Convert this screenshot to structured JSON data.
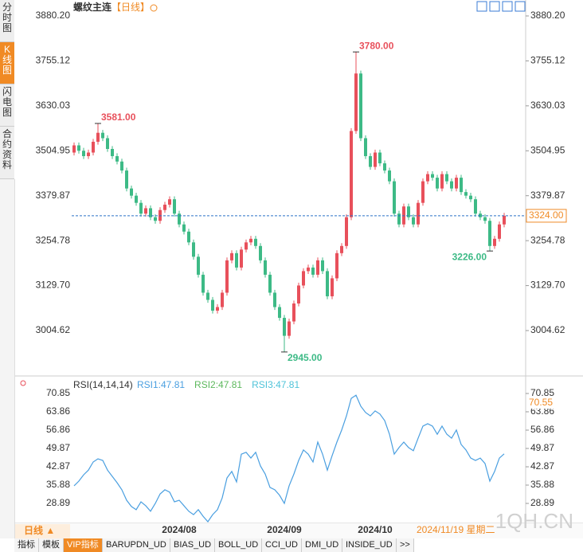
{
  "ui": {
    "sidebar_tabs": [
      "分时图",
      "K线图",
      "闪电图",
      "合约资料"
    ],
    "active_sidebar_tab": 1,
    "symbol": "螺纹主连",
    "period": "【日线】",
    "period_button": "日线 ▲",
    "date_status": "2024/11/19 星期二",
    "bottom_tabs": [
      "指标",
      "模板",
      "VIP指标",
      "BARUPDN_UD",
      "BIAS_UD",
      "BOLL_UD",
      "CCI_UD",
      "DMI_UD",
      "INSIDE_UD",
      ">>"
    ],
    "active_bottom_tab": 2,
    "watermark": "1QH.CN"
  },
  "chart_data": [
    {
      "type": "candlestick",
      "up_color": "#e8505b",
      "down_color": "#3dba86",
      "open": [
        3500,
        3520,
        3505,
        3490,
        3500,
        3530,
        3555,
        3540,
        3510,
        3490,
        3475,
        3450,
        3400,
        3380,
        3360,
        3330,
        3345,
        3320,
        3310,
        3340,
        3355,
        3370,
        3330,
        3300,
        3280,
        3250,
        3210,
        3160,
        3110,
        3090,
        3060,
        3070,
        3110,
        3200,
        3220,
        3180,
        3230,
        3250,
        3260,
        3240,
        3200,
        3160,
        3110,
        3070,
        3040,
        2990,
        3030,
        3080,
        3130,
        3170,
        3180,
        3160,
        3200,
        3170,
        3100,
        3150,
        3220,
        3240,
        3320,
        3560,
        3720,
        3540,
        3490,
        3460,
        3500,
        3470,
        3450,
        3420,
        3330,
        3300,
        3350,
        3320,
        3300,
        3360,
        3420,
        3440,
        3430,
        3400,
        3440,
        3420,
        3400,
        3430,
        3390,
        3380,
        3370,
        3330,
        3320,
        3310,
        3240,
        3260,
        3300
      ],
      "high": [
        3528,
        3528,
        3513,
        3508,
        3538,
        3581,
        3563,
        3548,
        3518,
        3498,
        3483,
        3458,
        3408,
        3388,
        3368,
        3353,
        3353,
        3328,
        3348,
        3363,
        3378,
        3378,
        3338,
        3308,
        3288,
        3258,
        3218,
        3168,
        3118,
        3098,
        3078,
        3118,
        3208,
        3228,
        3228,
        3238,
        3258,
        3268,
        3268,
        3248,
        3208,
        3168,
        3118,
        3078,
        3048,
        3038,
        3088,
        3138,
        3178,
        3188,
        3188,
        3208,
        3208,
        3178,
        3158,
        3228,
        3248,
        3328,
        3568,
        3780,
        3728,
        3548,
        3498,
        3508,
        3508,
        3478,
        3458,
        3428,
        3338,
        3358,
        3358,
        3328,
        3368,
        3428,
        3448,
        3448,
        3438,
        3448,
        3448,
        3428,
        3438,
        3438,
        3398,
        3388,
        3378,
        3338,
        3328,
        3318,
        3268,
        3308,
        3332
      ],
      "low": [
        3492,
        3497,
        3482,
        3482,
        3492,
        3522,
        3532,
        3502,
        3482,
        3467,
        3442,
        3392,
        3372,
        3352,
        3322,
        3322,
        3312,
        3302,
        3302,
        3332,
        3347,
        3322,
        3292,
        3272,
        3242,
        3202,
        3152,
        3102,
        3082,
        3052,
        3052,
        3062,
        3102,
        3192,
        3172,
        3172,
        3222,
        3242,
        3232,
        3192,
        3152,
        3102,
        3062,
        3032,
        2945,
        2982,
        3022,
        3072,
        3122,
        3162,
        3152,
        3152,
        3162,
        3092,
        3092,
        3142,
        3212,
        3232,
        3312,
        3552,
        3532,
        3482,
        3452,
        3452,
        3462,
        3442,
        3412,
        3322,
        3292,
        3292,
        3312,
        3292,
        3292,
        3352,
        3412,
        3422,
        3392,
        3392,
        3412,
        3392,
        3392,
        3382,
        3372,
        3362,
        3322,
        3312,
        3302,
        3226,
        3232,
        3252,
        3292
      ],
      "close": [
        3520,
        3505,
        3490,
        3500,
        3530,
        3555,
        3540,
        3510,
        3490,
        3475,
        3450,
        3400,
        3380,
        3360,
        3330,
        3345,
        3320,
        3310,
        3340,
        3355,
        3370,
        3330,
        3300,
        3280,
        3250,
        3210,
        3160,
        3110,
        3090,
        3060,
        3070,
        3110,
        3200,
        3220,
        3180,
        3230,
        3250,
        3260,
        3240,
        3200,
        3160,
        3110,
        3070,
        3040,
        2990,
        3030,
        3080,
        3130,
        3170,
        3180,
        3160,
        3200,
        3170,
        3100,
        3150,
        3220,
        3240,
        3320,
        3560,
        3720,
        3540,
        3490,
        3460,
        3500,
        3470,
        3450,
        3420,
        3330,
        3300,
        3350,
        3320,
        3300,
        3360,
        3420,
        3440,
        3430,
        3400,
        3440,
        3420,
        3400,
        3430,
        3390,
        3380,
        3370,
        3330,
        3320,
        3310,
        3240,
        3260,
        3300,
        3324
      ],
      "ylim": [
        2882.7,
        3880.2
      ],
      "yticks": [
        {
          "value": 3880.2,
          "label": "3880.20"
        },
        {
          "value": 3755.12,
          "label": "3755.12"
        },
        {
          "value": 3630.03,
          "label": "3630.03"
        },
        {
          "value": 3504.95,
          "label": "3504.95"
        },
        {
          "value": 3379.87,
          "label": "3379.87"
        },
        {
          "value": 3254.78,
          "label": "3254.78"
        },
        {
          "value": 3129.7,
          "label": "3129.70"
        },
        {
          "value": 3004.62,
          "label": "3004.62"
        }
      ],
      "last_price": {
        "value": 3324,
        "label": "3324.00"
      },
      "annotations": [
        {
          "value": 3581,
          "label": "3581.00",
          "kind": "high"
        },
        {
          "value": 3780,
          "label": "3780.00",
          "kind": "high"
        },
        {
          "value": 2945,
          "label": "2945.00",
          "kind": "low"
        },
        {
          "value": 3226,
          "label": "3226.00",
          "kind": "low"
        }
      ]
    },
    {
      "type": "line",
      "title": "RSI(14,14,14)",
      "categories": [
        null,
        null,
        null,
        null,
        null,
        null,
        null,
        null,
        null,
        null,
        null,
        null,
        null,
        null,
        null,
        null,
        null,
        null,
        null,
        null,
        null,
        null,
        "2024/08",
        null,
        null,
        null,
        null,
        null,
        null,
        null,
        null,
        null,
        null,
        null,
        null,
        null,
        null,
        null,
        null,
        null,
        null,
        null,
        null,
        null,
        "2024/09",
        null,
        null,
        null,
        null,
        null,
        null,
        null,
        null,
        null,
        null,
        null,
        null,
        null,
        null,
        null,
        null,
        null,
        null,
        "2024/10",
        null,
        null,
        null,
        null,
        null,
        null,
        null,
        null,
        null,
        null,
        null,
        null,
        null,
        null,
        null,
        null,
        null,
        null,
        null,
        null,
        null,
        null,
        null,
        null,
        null,
        null,
        null
      ],
      "series": [
        {
          "name": "RSI1:47.81",
          "color": "#4a9fe0",
          "values": [
            35.6,
            37.4,
            39.8,
            41.6,
            44.7,
            45.9,
            45.3,
            41.6,
            39.2,
            36.8,
            34.1,
            30.1,
            27.7,
            26.5,
            29.5,
            28.0,
            25.9,
            28.9,
            32.5,
            34.1,
            33.2,
            29.5,
            30.1,
            28.0,
            25.9,
            24.6,
            26.5,
            24.0,
            21.9,
            24.6,
            26.5,
            31.0,
            38.6,
            41.1,
            37.1,
            47.7,
            48.4,
            46.2,
            48.4,
            43.2,
            40.1,
            35.0,
            34.1,
            32.0,
            28.9,
            35.6,
            40.1,
            45.3,
            49.3,
            47.7,
            44.7,
            52.3,
            47.7,
            41.6,
            47.1,
            52.3,
            56.9,
            62.3,
            69.0,
            70.2,
            66.0,
            63.6,
            62.3,
            64.2,
            63.0,
            60.5,
            55.3,
            47.7,
            50.2,
            52.3,
            50.2,
            49.0,
            53.8,
            58.4,
            59.3,
            58.4,
            55.3,
            58.4,
            55.3,
            53.8,
            56.9,
            51.4,
            49.3,
            46.2,
            45.3,
            46.2,
            44.1,
            37.4,
            41.1,
            46.2,
            47.8
          ]
        }
      ],
      "other_legend": [
        {
          "name": "RSI2:47.81",
          "color": "#5cb85c"
        },
        {
          "name": "RSI3:47.81",
          "color": "#4fc3d9"
        }
      ],
      "ylim": [
        21.9,
        72.67
      ],
      "yticks": [
        70.85,
        63.86,
        56.86,
        49.87,
        42.87,
        35.88,
        28.89
      ],
      "cursor_value": 70.55
    }
  ]
}
